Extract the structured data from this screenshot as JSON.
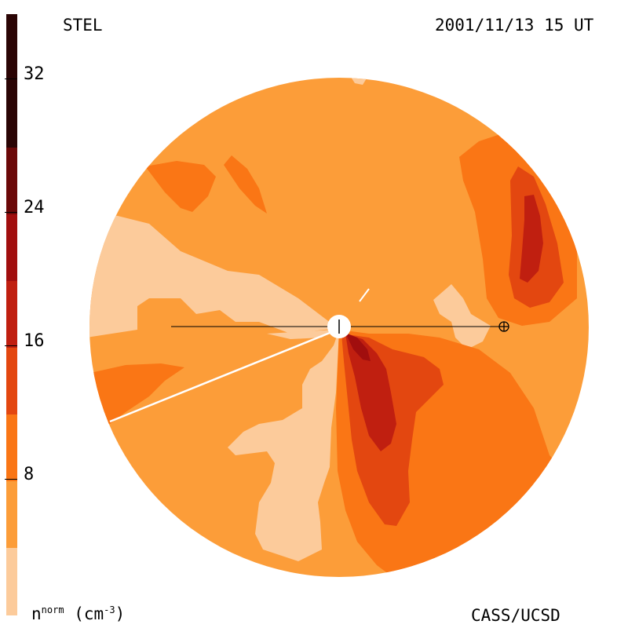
{
  "header": {
    "instrument": "STEL",
    "timestamp": "2001/11/13 15 UT"
  },
  "footer": {
    "quantity_base": "n",
    "quantity_sup": "norm",
    "unit_open": " (cm",
    "unit_sup": "-3",
    "unit_close": ")",
    "credit": "CASS/UCSD"
  },
  "colorbar": {
    "tick_labels": [
      "32",
      "24",
      "16",
      "8"
    ],
    "colors": [
      "#FCCB9B",
      "#FC9D39",
      "#FA7615",
      "#E34710",
      "#C01F10",
      "#A10E0E",
      "#6B0808",
      "#2A0404"
    ]
  },
  "map": {
    "background_color": "#FC9D39",
    "sun_symbol": "sun-icon",
    "earth_symbol": "earth-icon"
  }
}
